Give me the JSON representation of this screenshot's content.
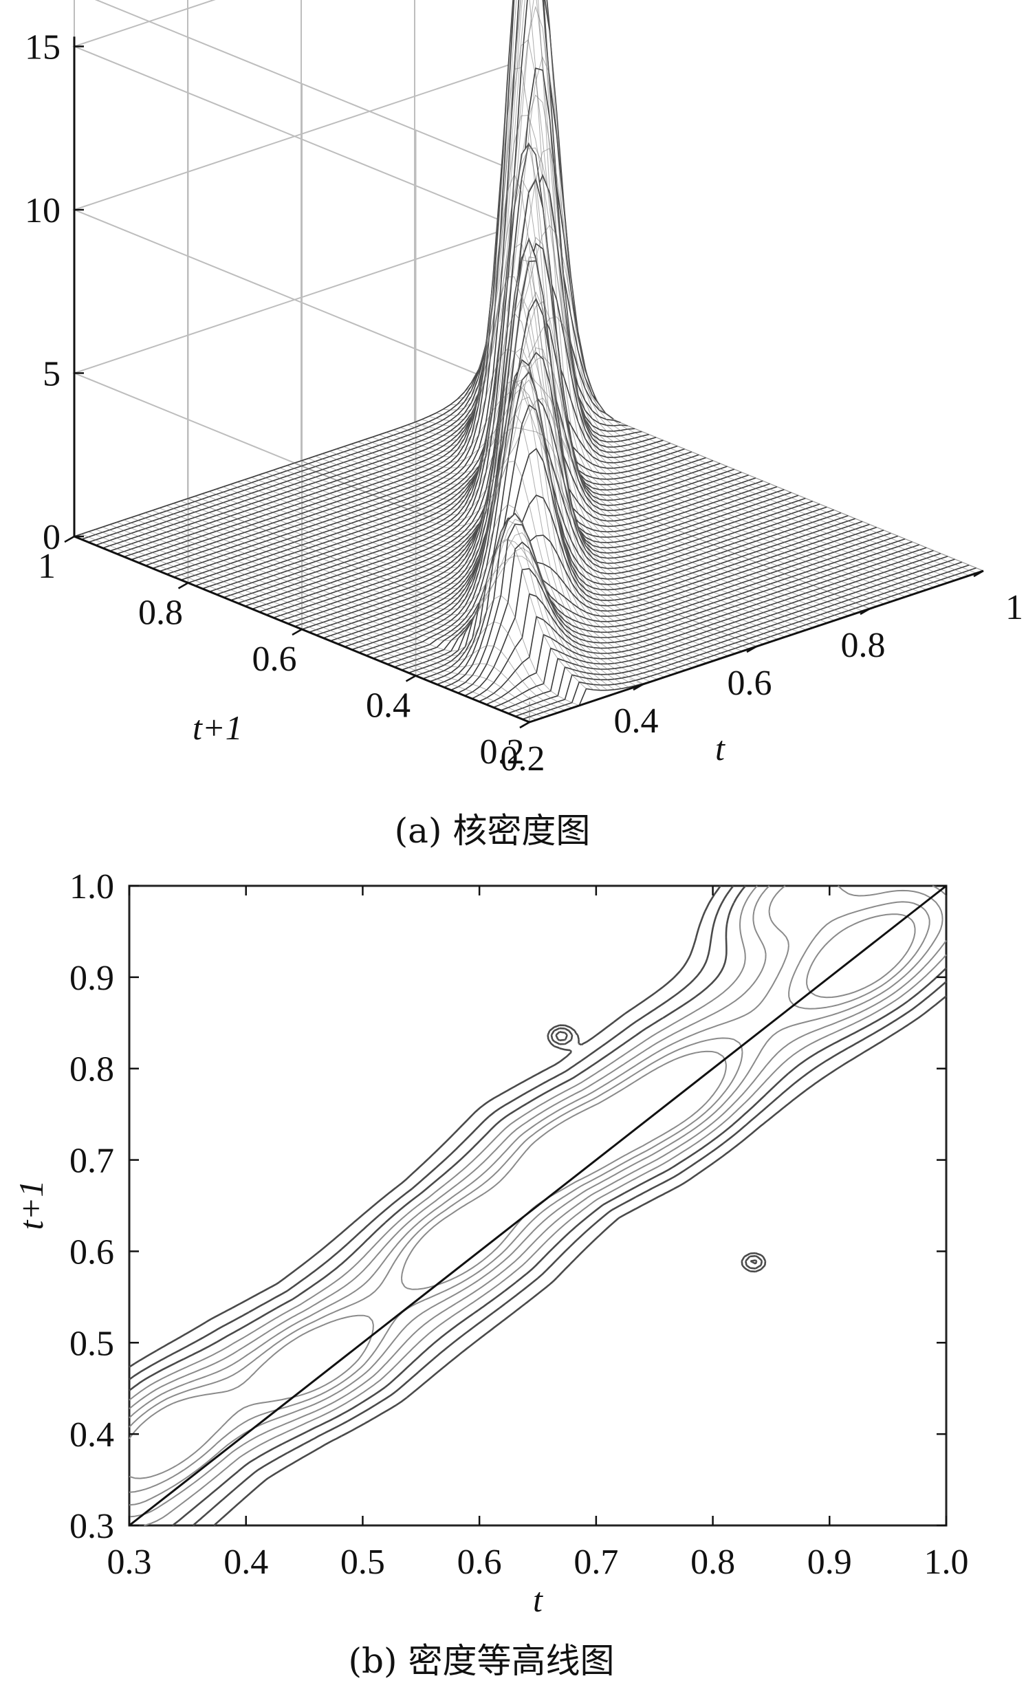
{
  "chart_data": [
    {
      "type": "surface",
      "caption": "(a) 核密度图",
      "xlabel": "t",
      "ylabel": "t+1",
      "zlabel": "",
      "x_ticks": [
        "0.2",
        "0.4",
        "0.6",
        "0.8",
        "1"
      ],
      "y_ticks": [
        "0.2",
        "0.4",
        "0.6",
        "0.8",
        "1"
      ],
      "z_ticks": [
        "0",
        "5",
        "10",
        "15"
      ],
      "xlim": [
        0.2,
        1.0
      ],
      "ylim": [
        0.2,
        1.0
      ],
      "zlim": [
        0,
        15
      ],
      "grid": true,
      "peaks": [
        {
          "t": 0.82,
          "t1": 0.82,
          "density": 16.5
        },
        {
          "t": 0.93,
          "t1": 0.92,
          "density": 14.0
        },
        {
          "t": 0.68,
          "t1": 0.68,
          "density": 10.5
        },
        {
          "t": 0.55,
          "t1": 0.55,
          "density": 9.0
        },
        {
          "t": 0.45,
          "t1": 0.46,
          "density": 6.5
        },
        {
          "t": 0.32,
          "t1": 0.35,
          "density": 3.5
        }
      ]
    },
    {
      "type": "contour",
      "caption": "(b) 密度等高线图",
      "xlabel": "t",
      "ylabel": "t+1",
      "x_ticks": [
        "0.3",
        "0.4",
        "0.5",
        "0.6",
        "0.7",
        "0.8",
        "0.9",
        "1.0"
      ],
      "y_ticks": [
        "0.3",
        "0.4",
        "0.5",
        "0.6",
        "0.7",
        "0.8",
        "0.9",
        "1.0"
      ],
      "xlim": [
        0.3,
        1.0
      ],
      "ylim": [
        0.3,
        1.0
      ],
      "reference_line": {
        "from": [
          0.3,
          0.3
        ],
        "to": [
          1.0,
          1.0
        ]
      },
      "ridge": [
        [
          0.3,
          0.34
        ],
        [
          0.36,
          0.41
        ],
        [
          0.42,
          0.46
        ],
        [
          0.48,
          0.5
        ],
        [
          0.54,
          0.56
        ],
        [
          0.6,
          0.62
        ],
        [
          0.66,
          0.7
        ],
        [
          0.72,
          0.74
        ],
        [
          0.78,
          0.8
        ],
        [
          0.85,
          0.86
        ],
        [
          0.92,
          0.92
        ],
        [
          0.97,
          0.97
        ]
      ],
      "peak_centers": [
        {
          "t": 0.33,
          "t1": 0.4
        },
        {
          "t": 0.46,
          "t1": 0.48
        },
        {
          "t": 0.58,
          "t1": 0.61
        },
        {
          "t": 0.68,
          "t1": 0.71
        },
        {
          "t": 0.77,
          "t1": 0.77
        },
        {
          "t": 0.93,
          "t1": 0.92
        },
        {
          "t": 0.87,
          "t1": 0.99
        }
      ],
      "isolated_blobs": [
        {
          "t": 0.67,
          "t1": 0.836
        },
        {
          "t": 0.835,
          "t1": 0.588
        }
      ]
    }
  ]
}
